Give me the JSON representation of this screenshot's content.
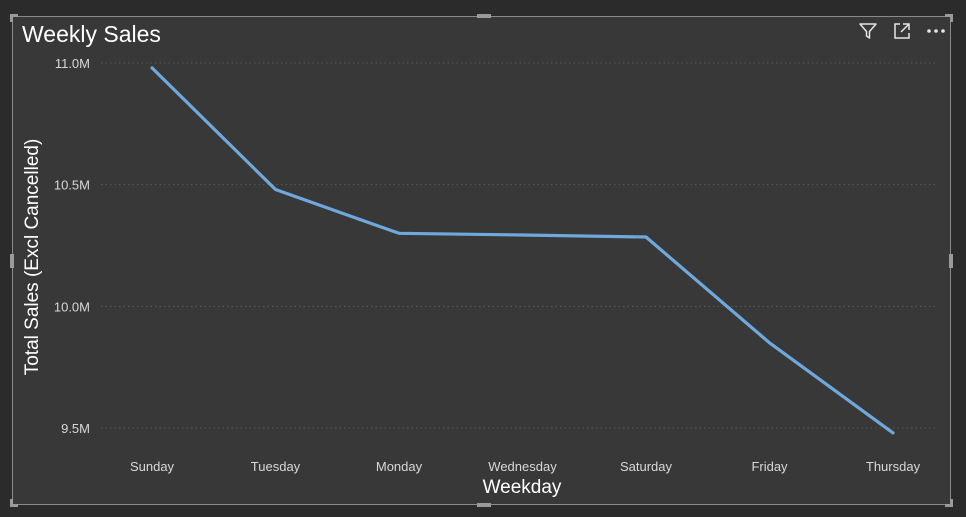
{
  "visual": {
    "title": "Weekly Sales",
    "icons": [
      "filter-icon",
      "focus-mode-icon",
      "more-options-icon"
    ]
  },
  "colors": {
    "background": "#383838",
    "line": "#6fa8dc",
    "gridline": "#5a5a5a",
    "text": "#ffffff"
  },
  "chart_data": {
    "type": "line",
    "title": "Weekly Sales",
    "xlabel": "Weekday",
    "ylabel": "Total Sales (Excl Cancelled)",
    "categories": [
      "Sunday",
      "Tuesday",
      "Monday",
      "Wednesday",
      "Saturday",
      "Friday",
      "Thursday"
    ],
    "series": [
      {
        "values": [
          10980000,
          10480000,
          10300000,
          10293000,
          10285000,
          9850000,
          9480000
        ]
      }
    ],
    "yticks": [
      {
        "value": 11000000,
        "label": "11.0M"
      },
      {
        "value": 10500000,
        "label": "10.5M"
      },
      {
        "value": 10000000,
        "label": "10.0M"
      },
      {
        "value": 9500000,
        "label": "9.5M"
      }
    ],
    "ylim": [
      9500000,
      11000000
    ],
    "grid": true,
    "legend": "none"
  }
}
